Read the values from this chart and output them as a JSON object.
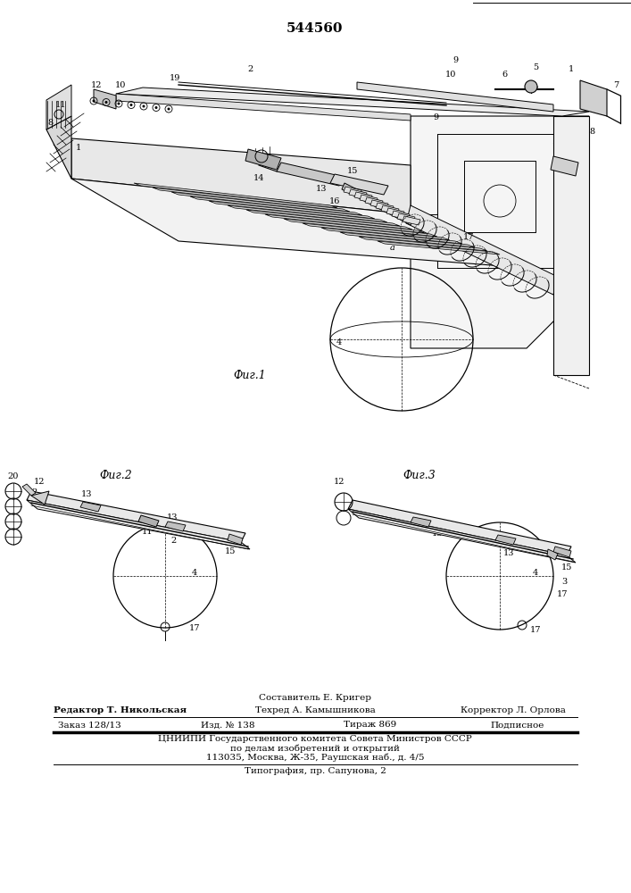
{
  "patent_number": "544560",
  "background_color": "#ffffff",
  "line_color": "#000000",
  "fig_width": 7.07,
  "fig_height": 10.0,
  "dpi": 100,
  "fig1_caption": "Фиг.1",
  "fig2_caption": "Фиг.2",
  "fig3_caption": "Фиг.3",
  "footer_composer": "Составитель Е. Кригер",
  "footer_editor": "Редактор Т. Никольская",
  "footer_techred": "Техред А. Камышникова",
  "footer_corrector": "Корректор Л. Орлова",
  "footer_order": "Заказ 128/13",
  "footer_izd": "Изд. № 138",
  "footer_tirazh": "Тираж 869",
  "footer_podpisnoe": "Подписное",
  "footer_org": "ЦНИИПИ Государственного комитета Совета Министров СССР",
  "footer_org2": "по делам изобретений и открытий",
  "footer_address": "113035, Москва, Ж-35, Раушская наб., д. 4/5",
  "footer_typography": "Типография, пр. Сапунова, 2",
  "footer_fontsize": 7.5,
  "caption_fontsize": 9,
  "label_fontsize": 7
}
